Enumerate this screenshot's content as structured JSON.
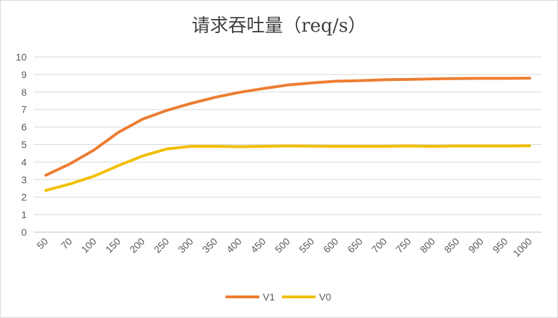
{
  "chart_data": {
    "type": "line",
    "title": "请求吞吐量（req/s）",
    "xlabel": "",
    "ylabel": "",
    "categories": [
      "50",
      "70",
      "100",
      "150",
      "200",
      "250",
      "300",
      "350",
      "400",
      "450",
      "500",
      "550",
      "600",
      "650",
      "700",
      "750",
      "800",
      "850",
      "900",
      "950",
      "1000"
    ],
    "ylim": [
      0,
      10
    ],
    "yticks": [
      0,
      1,
      2,
      3,
      4,
      5,
      6,
      7,
      8,
      9,
      10
    ],
    "grid": true,
    "legend": "bottom",
    "series": [
      {
        "name": "V1",
        "color": "#ED7D31",
        "values": [
          3.25,
          3.9,
          4.7,
          5.7,
          6.45,
          6.95,
          7.35,
          7.7,
          7.98,
          8.2,
          8.4,
          8.52,
          8.62,
          8.65,
          8.7,
          8.72,
          8.75,
          8.77,
          8.78,
          8.78,
          8.79
        ]
      },
      {
        "name": "V0",
        "color": "#F2BF00",
        "values": [
          2.38,
          2.75,
          3.2,
          3.8,
          4.35,
          4.75,
          4.9,
          4.9,
          4.88,
          4.9,
          4.92,
          4.91,
          4.9,
          4.9,
          4.9,
          4.92,
          4.9,
          4.92,
          4.92,
          4.92,
          4.93
        ]
      }
    ]
  }
}
